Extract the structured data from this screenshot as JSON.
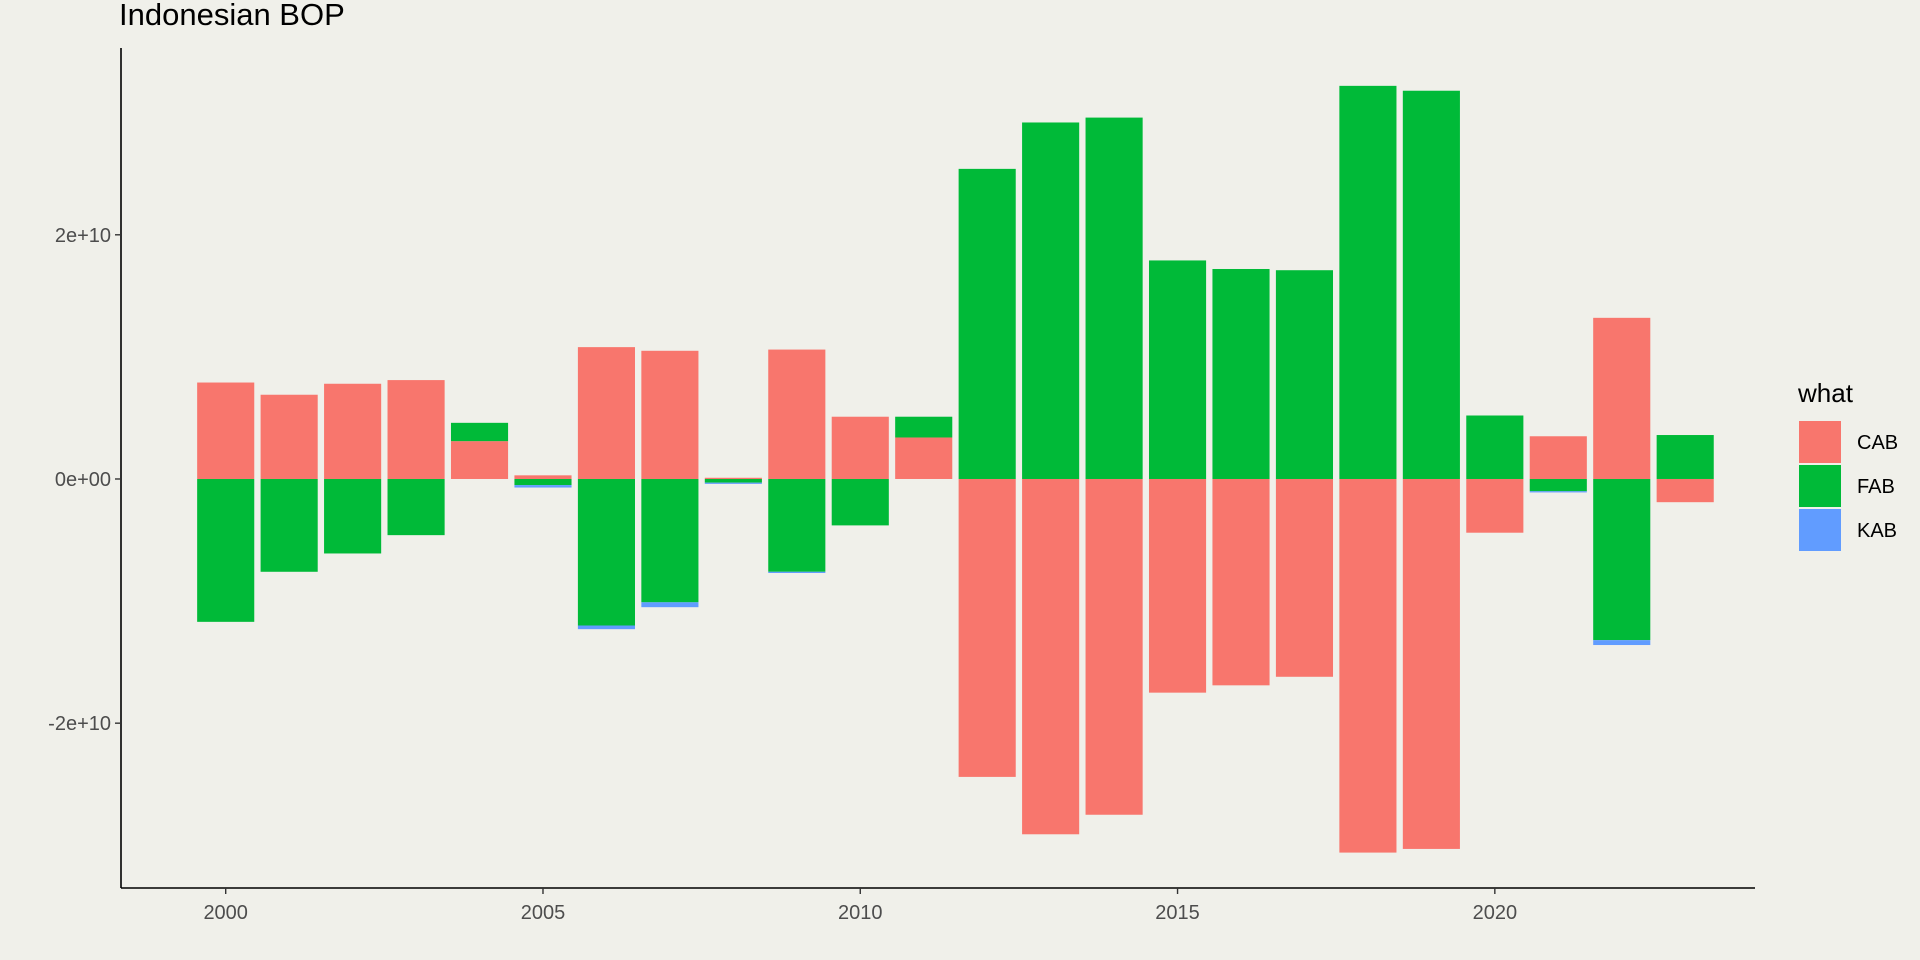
{
  "chart_data": {
    "type": "bar",
    "stacked": true,
    "title": "Indonesian BOP",
    "xlabel": "",
    "ylabel": "",
    "x": [
      2000,
      2001,
      2002,
      2003,
      2004,
      2005,
      2006,
      2007,
      2008,
      2009,
      2010,
      2011,
      2012,
      2013,
      2014,
      2015,
      2016,
      2017,
      2018,
      2019,
      2020,
      2021,
      2022,
      2023
    ],
    "series": [
      {
        "name": "CAB",
        "color": "#f8766d",
        "values": [
          7900000000.0,
          6900000000.0,
          7800000000.0,
          8100000000.0,
          3100000000.0,
          300000000.0,
          10800000000.0,
          10500000000.0,
          100000000.0,
          10600000000.0,
          5100000000.0,
          3400000000.0,
          -24400000000.0,
          -29100000000.0,
          -27500000000.0,
          -17500000000.0,
          -16900000000.0,
          -16200000000.0,
          -30600000000.0,
          -30300000000.0,
          -4400000000.0,
          3500000000.0,
          13200000000.0,
          -1900000000.0
        ]
      },
      {
        "name": "FAB",
        "color": "#00ba38",
        "values": [
          -11700000000.0,
          -7600000000.0,
          -6100000000.0,
          -4600000000.0,
          1500000000.0,
          -500000000.0,
          -12000000000.0,
          -10100000000.0,
          -300000000.0,
          -7600000000.0,
          -3800000000.0,
          1700000000.0,
          25400000000.0,
          29200000000.0,
          29600000000.0,
          17900000000.0,
          17200000000.0,
          17100000000.0,
          32200000000.0,
          31800000000.0,
          5200000000.0,
          -1000000000.0,
          -13200000000.0,
          3600000000.0
        ]
      },
      {
        "name": "KAB",
        "color": "#619cff",
        "values": [
          0,
          0,
          0,
          0,
          0,
          -200000000.0,
          -300000000.0,
          -400000000.0,
          -100000000.0,
          -100000000.0,
          0,
          0,
          0,
          0,
          0,
          0,
          0,
          0,
          0,
          0,
          0,
          -100000000.0,
          -400000000.0,
          0
        ]
      }
    ],
    "xticks": [
      2000,
      2005,
      2010,
      2015,
      2020
    ],
    "xtick_labels": [
      "2000",
      "2005",
      "2010",
      "2015",
      "2020"
    ],
    "yticks": [
      -20000000000.0,
      0,
      20000000000.0
    ],
    "ytick_labels": [
      "-2e+10",
      "0e+00",
      "2e+10"
    ],
    "xlim": [
      1998.35,
      2024.1
    ],
    "ylim": [
      -33500000000.0,
      35300000000.0
    ],
    "legend": {
      "title": "what",
      "position": "right"
    },
    "grid": false
  }
}
